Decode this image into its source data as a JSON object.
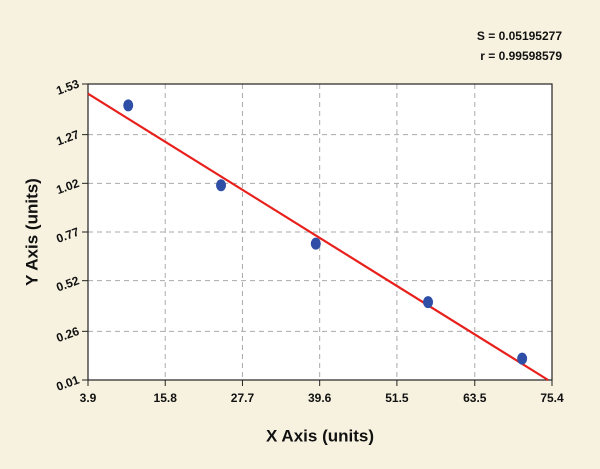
{
  "chart_data": {
    "type": "scatter",
    "xlabel": "X Axis (units)",
    "ylabel": "Y Axis (units)",
    "annotations": [
      "S = 0.05195277",
      "r = 0.99598579"
    ],
    "x": [
      10.1,
      24.4,
      39.0,
      56.3,
      70.8
    ],
    "values": [
      1.42,
      1.01,
      0.71,
      0.41,
      0.12
    ],
    "color": "#2f4ea6",
    "fit": {
      "x": [
        3.9,
        74.8
      ],
      "values": [
        1.48,
        0.01
      ],
      "color": "#e8201c"
    },
    "xlim": [
      3.9,
      75.4
    ],
    "xticks": [
      3.9,
      15.8,
      27.7,
      39.6,
      51.5,
      63.5,
      75.4
    ],
    "ylim": [
      0.01,
      1.53
    ],
    "yticks": [
      0.01,
      0.26,
      0.52,
      0.77,
      1.02,
      1.27,
      1.53
    ],
    "grid": true
  }
}
